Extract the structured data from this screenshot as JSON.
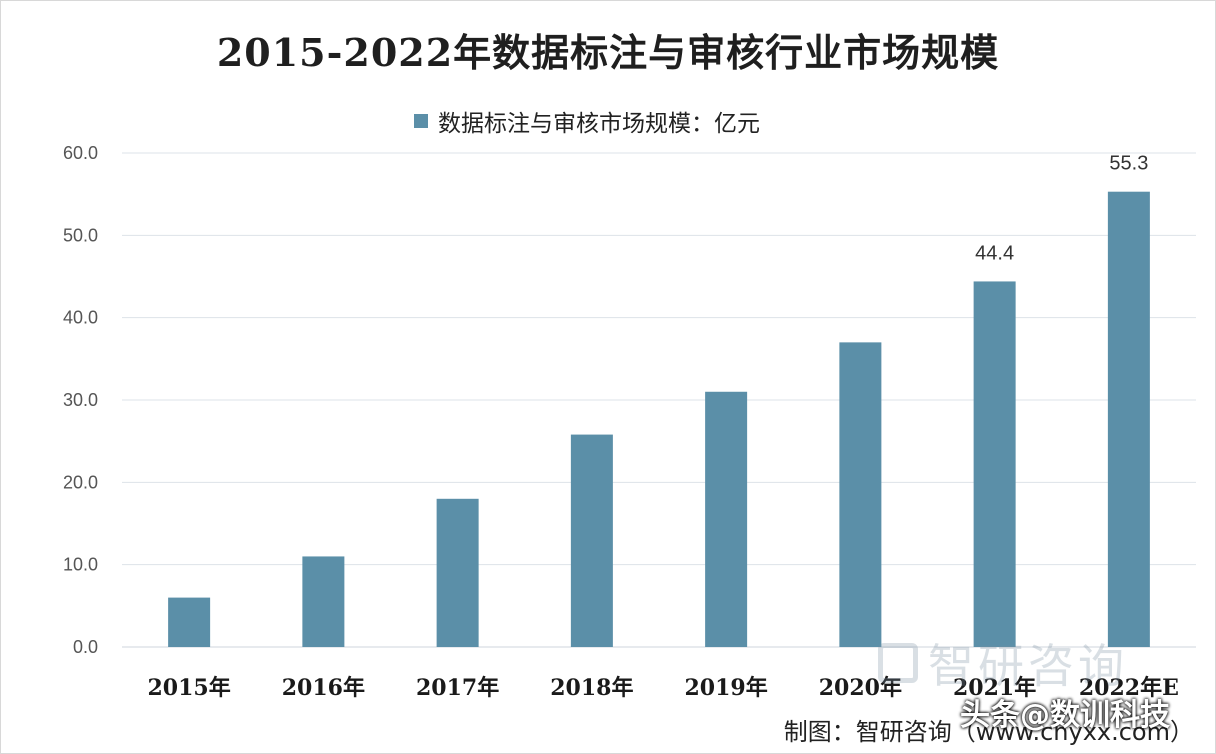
{
  "title": "2015-2022年数据标注与审核行业市场规模",
  "legend": {
    "label": "数据标注与审核市场规模：亿元",
    "color": "#5b8fa8"
  },
  "chart_data": {
    "type": "bar",
    "categories": [
      "2015年",
      "2016年",
      "2017年",
      "2018年",
      "2019年",
      "2020年",
      "2021年",
      "2022年E"
    ],
    "series": [
      {
        "name": "数据标注与审核市场规模：亿元",
        "values": [
          6.0,
          11.0,
          18.0,
          25.8,
          31.0,
          37.0,
          44.4,
          55.3
        ]
      }
    ],
    "data_labels": [
      null,
      null,
      null,
      null,
      null,
      null,
      "44.4",
      "55.3"
    ],
    "yticks": [
      "0.0",
      "10.0",
      "20.0",
      "30.0",
      "40.0",
      "50.0",
      "60.0"
    ],
    "ylim": [
      0,
      60
    ],
    "grid": true,
    "legend_position": "top"
  },
  "watermark": {
    "text": "智研咨询"
  },
  "source": "制图：智研咨询（www.chyxx.com）",
  "overlay": "头条@数训科技"
}
